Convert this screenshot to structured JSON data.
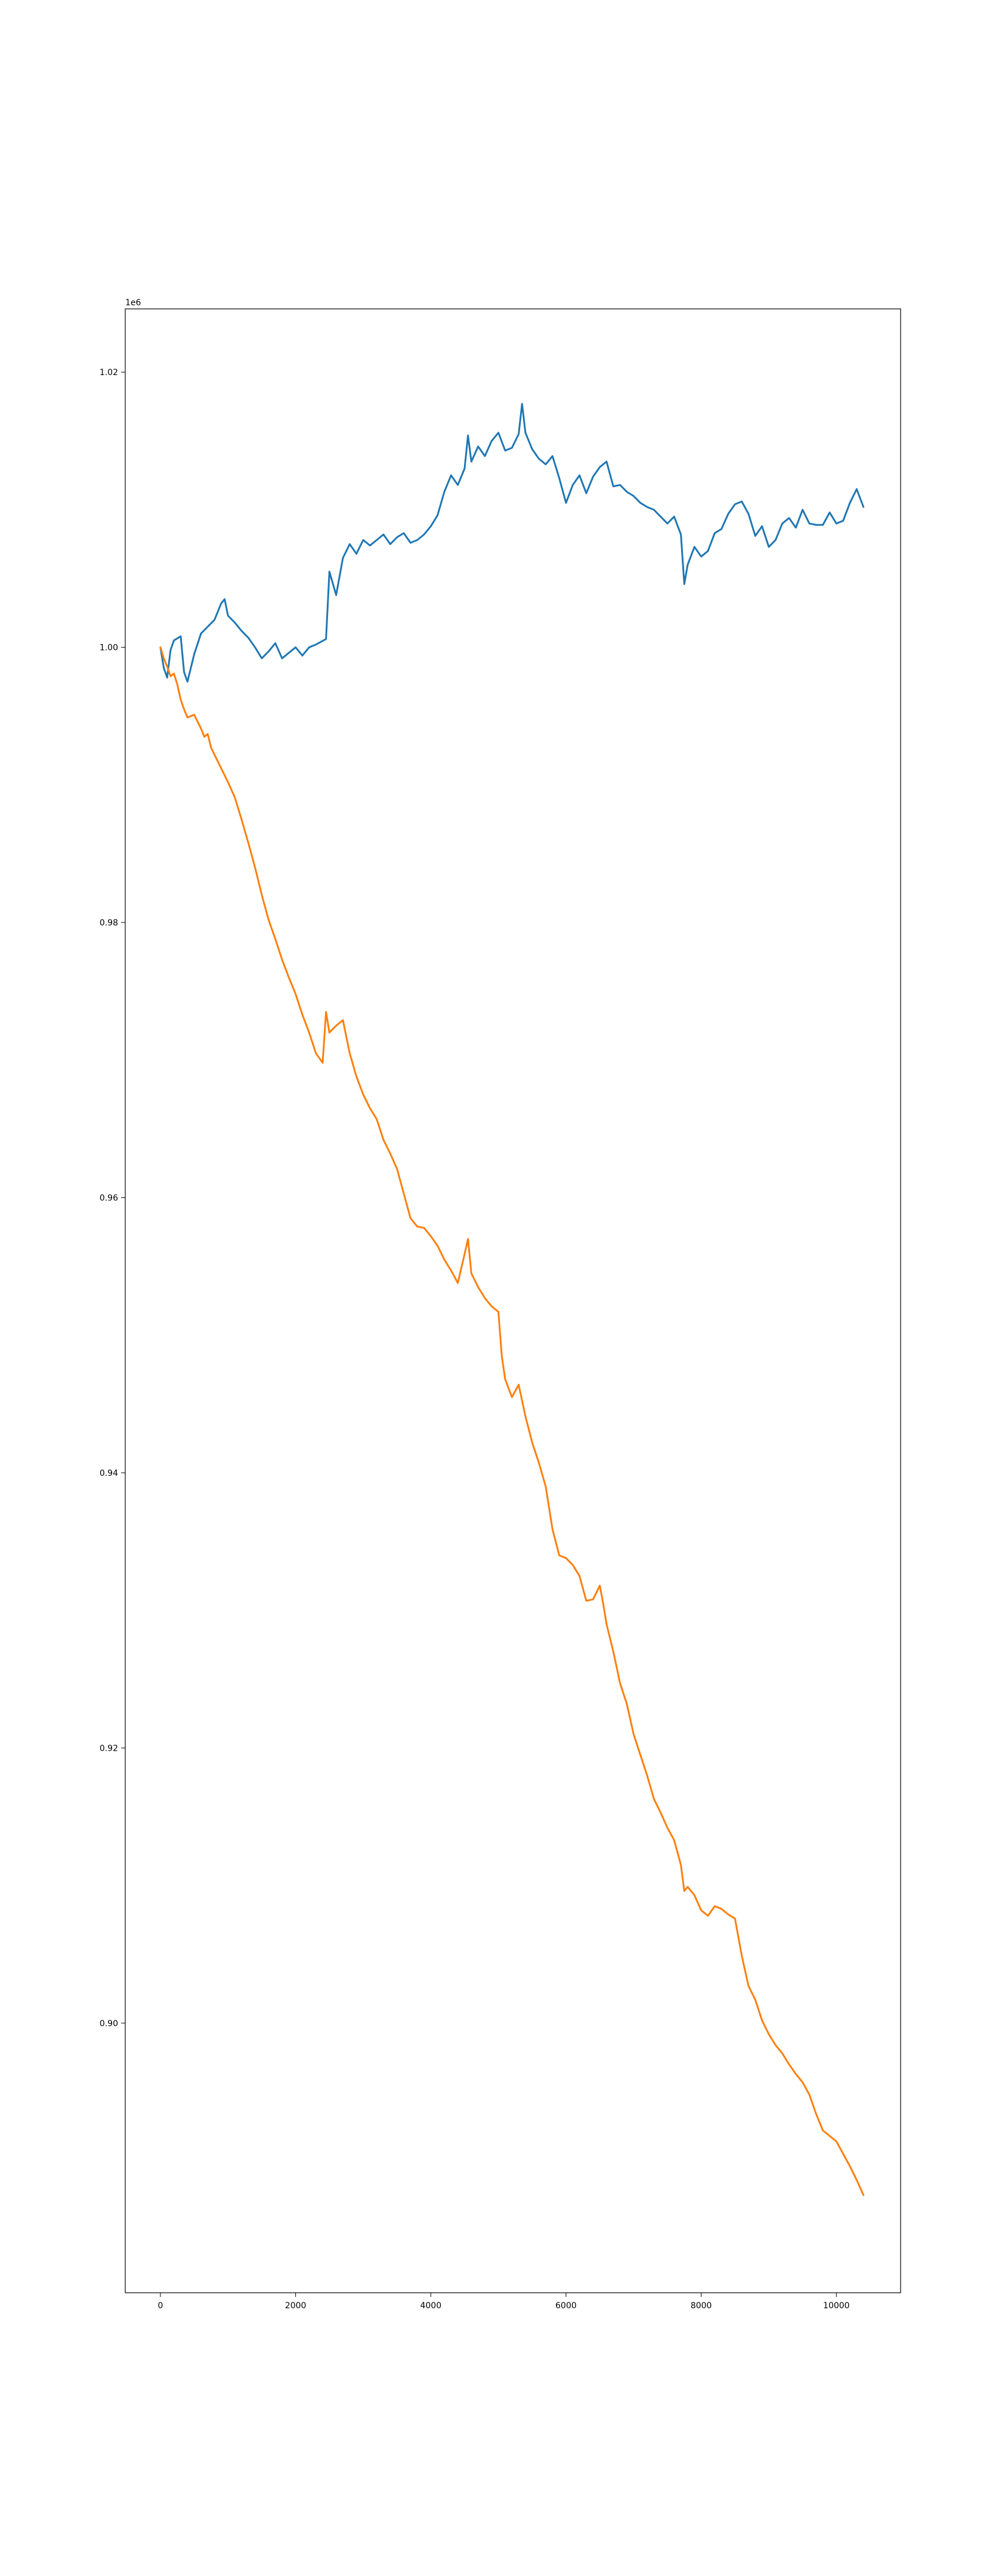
{
  "chart_data": {
    "type": "line",
    "title": "",
    "xlabel": "",
    "ylabel": "",
    "y_offset_label": "1e6",
    "xlim": [
      -520,
      10950
    ],
    "ylim": [
      880400,
      1024600
    ],
    "x_ticks": [
      0,
      2000,
      4000,
      6000,
      8000,
      10000
    ],
    "y_ticks": [
      900000,
      920000,
      940000,
      960000,
      980000,
      1000000,
      1020000
    ],
    "x_tick_labels": [
      "0",
      "2000",
      "4000",
      "6000",
      "8000",
      "10000"
    ],
    "y_tick_labels": [
      "0.90",
      "0.92",
      "0.94",
      "0.96",
      "0.98",
      "1.00",
      "1.02"
    ],
    "grid": false,
    "legend": "none",
    "series": [
      {
        "color": "#1f77b4",
        "x": [
          0,
          50,
          100,
          150,
          200,
          300,
          350,
          400,
          500,
          600,
          700,
          800,
          900,
          950,
          1000,
          1100,
          1200,
          1300,
          1400,
          1500,
          1600,
          1700,
          1800,
          1900,
          2000,
          2100,
          2200,
          2300,
          2450,
          2500,
          2600,
          2700,
          2800,
          2900,
          3000,
          3100,
          3200,
          3300,
          3400,
          3500,
          3600,
          3700,
          3800,
          3900,
          4000,
          4100,
          4200,
          4300,
          4400,
          4500,
          4550,
          4600,
          4700,
          4800,
          4900,
          5000,
          5100,
          5200,
          5300,
          5350,
          5400,
          5500,
          5600,
          5700,
          5800,
          5900,
          6000,
          6100,
          6200,
          6300,
          6400,
          6500,
          6600,
          6700,
          6800,
          6900,
          7000,
          7100,
          7200,
          7300,
          7400,
          7500,
          7600,
          7700,
          7750,
          7800,
          7900,
          8000,
          8100,
          8200,
          8300,
          8400,
          8500,
          8600,
          8700,
          8800,
          8900,
          9000,
          9100,
          9200,
          9300,
          9400,
          9500,
          9600,
          9700,
          9800,
          9900,
          10000,
          10100,
          10200,
          10300,
          10400
        ],
        "y": [
          1000000,
          998500,
          997800,
          999800,
          1000500,
          1000800,
          998200,
          997500,
          999500,
          1001000,
          1001500,
          1002000,
          1003200,
          1003500,
          1002300,
          1001800,
          1001200,
          1000700,
          1000000,
          999200,
          999700,
          1000300,
          999200,
          999600,
          1000000,
          999400,
          1000000,
          1000200,
          1000600,
          1005500,
          1003800,
          1006500,
          1007500,
          1006800,
          1007800,
          1007400,
          1007800,
          1008200,
          1007500,
          1008000,
          1008300,
          1007600,
          1007800,
          1008200,
          1008800,
          1009600,
          1011300,
          1012500,
          1011800,
          1013000,
          1015400,
          1013500,
          1014600,
          1013900,
          1015000,
          1015600,
          1014300,
          1014500,
          1015500,
          1017700,
          1015600,
          1014400,
          1013700,
          1013300,
          1013900,
          1012300,
          1010500,
          1011800,
          1012500,
          1011200,
          1012400,
          1013100,
          1013500,
          1011700,
          1011800,
          1011300,
          1011000,
          1010500,
          1010200,
          1010000,
          1009500,
          1009000,
          1009500,
          1008200,
          1004600,
          1006000,
          1007300,
          1006600,
          1007000,
          1008300,
          1008600,
          1009700,
          1010400,
          1010600,
          1009700,
          1008100,
          1008800,
          1007300,
          1007800,
          1009000,
          1009400,
          1008700,
          1010000,
          1009000,
          1008900,
          1008900,
          1009800,
          1009000,
          1009200,
          1010500,
          1011500,
          1010200
        ]
      },
      {
        "color": "#ff7f0e",
        "x": [
          0,
          50,
          100,
          150,
          200,
          250,
          300,
          350,
          400,
          500,
          600,
          650,
          700,
          750,
          800,
          900,
          1000,
          1100,
          1200,
          1300,
          1400,
          1500,
          1600,
          1700,
          1800,
          1900,
          2000,
          2100,
          2200,
          2300,
          2400,
          2450,
          2500,
          2600,
          2700,
          2800,
          2900,
          3000,
          3100,
          3200,
          3300,
          3400,
          3500,
          3600,
          3700,
          3800,
          3900,
          4000,
          4100,
          4200,
          4300,
          4400,
          4500,
          4550,
          4600,
          4700,
          4800,
          4900,
          5000,
          5050,
          5100,
          5200,
          5300,
          5400,
          5500,
          5600,
          5700,
          5800,
          5900,
          6000,
          6100,
          6200,
          6300,
          6400,
          6500,
          6550,
          6600,
          6700,
          6800,
          6900,
          7000,
          7100,
          7200,
          7300,
          7400,
          7500,
          7600,
          7700,
          7750,
          7800,
          7900,
          8000,
          8100,
          8200,
          8300,
          8400,
          8500,
          8600,
          8700,
          8800,
          8900,
          9000,
          9100,
          9200,
          9300,
          9400,
          9500,
          9600,
          9700,
          9800,
          9900,
          10000,
          10100,
          10200,
          10300,
          10400
        ],
        "y": [
          1000000,
          999200,
          998600,
          997900,
          998100,
          997300,
          996200,
          995500,
          994900,
          995100,
          994100,
          993500,
          993700,
          992700,
          992200,
          991200,
          990200,
          989100,
          987500,
          985800,
          984000,
          982000,
          980200,
          978800,
          977300,
          976000,
          974800,
          973300,
          972000,
          970500,
          969800,
          973500,
          972000,
          972500,
          972900,
          970500,
          968800,
          967500,
          966500,
          965700,
          964200,
          963200,
          962100,
          960300,
          958500,
          957900,
          957800,
          957200,
          956500,
          955500,
          954700,
          953800,
          955900,
          957000,
          954500,
          953500,
          952700,
          952100,
          951700,
          948500,
          946800,
          945500,
          946400,
          944100,
          942200,
          940700,
          939000,
          935900,
          934000,
          933800,
          933300,
          932500,
          930700,
          930800,
          931800,
          930500,
          929000,
          927000,
          924700,
          923200,
          921000,
          919500,
          918000,
          916300,
          915300,
          914200,
          913300,
          911500,
          909600,
          909900,
          909300,
          908200,
          907800,
          908500,
          908300,
          907900,
          907600,
          904900,
          902700,
          901700,
          900200,
          899200,
          898400,
          897800,
          897000,
          896300,
          895700,
          894800,
          893400,
          892200,
          891800,
          891400,
          890500,
          889600,
          888600,
          887500
        ]
      }
    ]
  }
}
